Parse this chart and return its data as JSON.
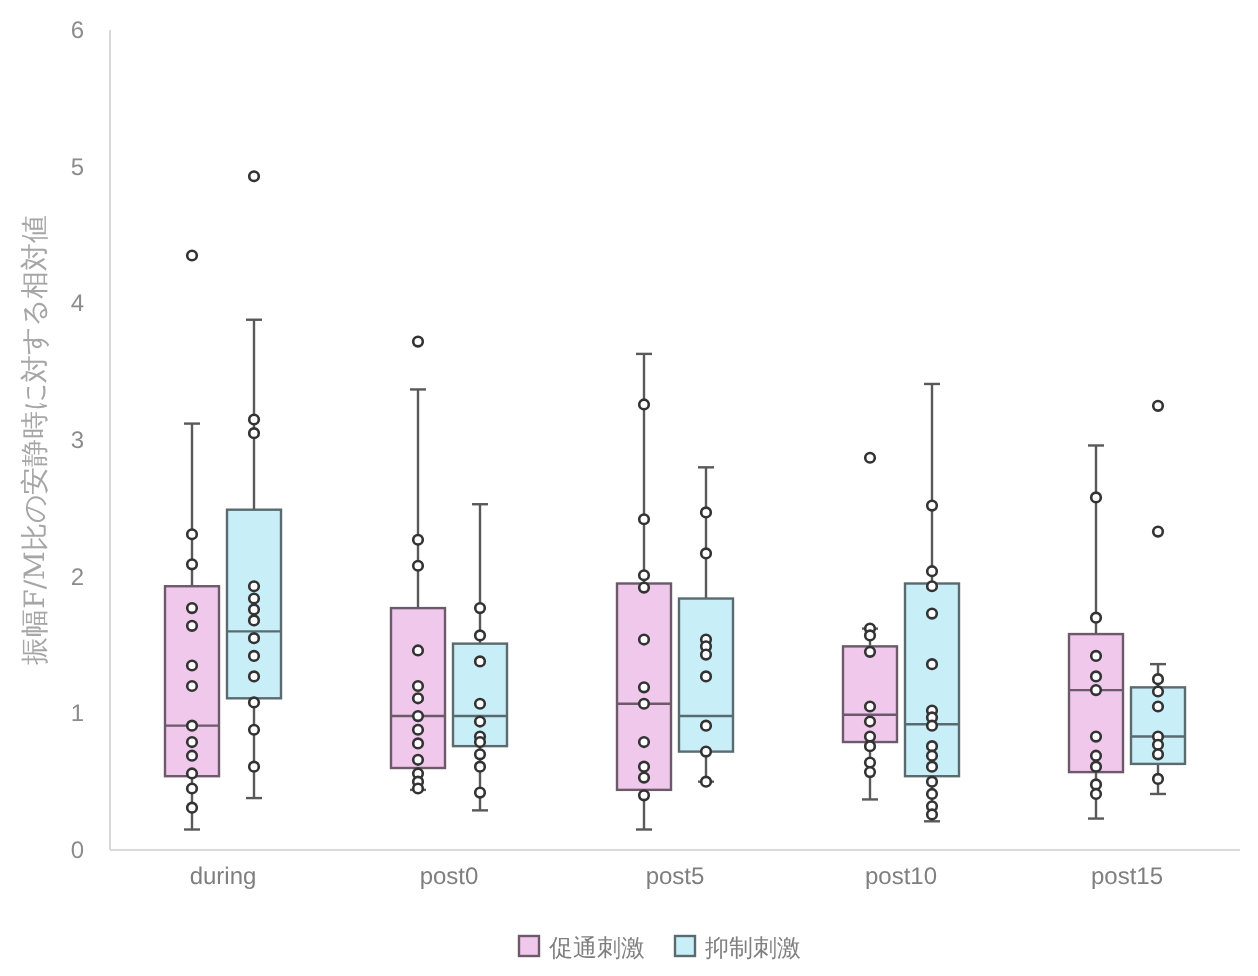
{
  "chart_data": {
    "type": "box",
    "ylabel": "振幅F/M比の安静時に対する相対値",
    "categories": [
      "during",
      "post0",
      "post5",
      "post10",
      "post15"
    ],
    "ylim": [
      0,
      6
    ],
    "yticks": [
      0,
      1,
      2,
      3,
      4,
      5,
      6
    ],
    "legend": "bottom",
    "series": [
      {
        "name": "促通刺激",
        "color": "#f0c8ec",
        "boxes": [
          {
            "low": 0.15,
            "q1": 0.54,
            "median": 0.91,
            "q3": 1.93,
            "high": 3.12,
            "outliers": [
              4.35
            ]
          },
          {
            "low": 0.44,
            "q1": 0.6,
            "median": 0.98,
            "q3": 1.77,
            "high": 3.37,
            "outliers": [
              3.72
            ]
          },
          {
            "low": 0.15,
            "q1": 0.44,
            "median": 1.07,
            "q3": 1.95,
            "high": 3.63
          },
          {
            "low": 0.37,
            "q1": 0.79,
            "median": 0.99,
            "q3": 1.49,
            "high": 1.62,
            "outliers": [
              2.87
            ]
          },
          {
            "low": 0.23,
            "q1": 0.57,
            "median": 1.17,
            "q3": 1.58,
            "high": 2.96
          }
        ]
      },
      {
        "name": "抑制刺激",
        "color": "#c8eef8",
        "boxes": [
          {
            "low": 0.38,
            "q1": 1.11,
            "median": 1.6,
            "q3": 2.49,
            "high": 3.88,
            "outliers": [
              4.93
            ]
          },
          {
            "low": 0.29,
            "q1": 0.76,
            "median": 0.98,
            "q3": 1.51,
            "high": 2.53
          },
          {
            "low": 0.5,
            "q1": 0.72,
            "median": 0.98,
            "q3": 1.84,
            "high": 2.8
          },
          {
            "low": 0.21,
            "q1": 0.54,
            "median": 0.92,
            "q3": 1.95,
            "high": 3.41
          },
          {
            "low": 0.41,
            "q1": 0.63,
            "median": 0.83,
            "q3": 1.19,
            "high": 1.36,
            "outliers": [
              3.25,
              2.33
            ]
          }
        ]
      },
      {
        "type": "scatter",
        "color": "#333333",
        "x": [
          "during",
          "during",
          "during",
          "during",
          "during",
          "during",
          "during",
          "during",
          "during",
          "during",
          "during",
          "during",
          "post0",
          "post0",
          "post0",
          "post0",
          "post0",
          "post0",
          "post0",
          "post0",
          "post0",
          "post0",
          "post0",
          "post0",
          "post5",
          "post5",
          "post5",
          "post5",
          "post5",
          "post5",
          "post5",
          "post5",
          "post5",
          "post5",
          "post5",
          "post5",
          "post10",
          "post10",
          "post10",
          "post10",
          "post10",
          "post10",
          "post10",
          "post10",
          "post10",
          "post15",
          "post15",
          "post15",
          "post15",
          "post15",
          "post15",
          "post15",
          "post15",
          "post15",
          "post15"
        ],
        "values": [
          2.31,
          2.09,
          1.77,
          1.64,
          1.35,
          1.2,
          0.91,
          0.79,
          0.69,
          0.56,
          0.45,
          0.31,
          2.27,
          2.08,
          1.46,
          1.2,
          1.11,
          0.98,
          0.88,
          0.78,
          0.66,
          0.56,
          0.5,
          0.45,
          3.26,
          2.42,
          2.01,
          null,
          1.92,
          1.54,
          1.19,
          1.07,
          0.79,
          0.61,
          0.53,
          0.4,
          1.62,
          1.57,
          1.45,
          1.05,
          0.94,
          0.83,
          0.76,
          0.64,
          0.57,
          2.58,
          1.7,
          1.42,
          1.27,
          1.17,
          0.83,
          0.69,
          0.61,
          0.48,
          0.41
        ]
      },
      {
        "type": "scatter",
        "color": "#333333",
        "x": [
          "during",
          "during",
          "during",
          "during",
          "during",
          "during",
          "during",
          "during",
          "during",
          "during",
          "during",
          "during",
          "post0",
          "post0",
          "post0",
          "post0",
          "post0",
          "post0",
          "post0",
          "post0",
          "post0",
          "post0",
          "post5",
          "post5",
          "post5",
          "post5",
          "post5",
          "post5",
          "post5",
          "post5",
          "post5",
          "post10",
          "post10",
          "post10",
          "post10",
          "post10",
          "post10",
          "post10",
          "post10",
          "post10",
          "post10",
          "post10",
          "post10",
          "post10",
          "post10",
          "post10",
          "post15",
          "post15",
          "post15",
          "post15",
          "post15",
          "post15",
          "post15",
          "post15"
        ],
        "values": [
          3.15,
          3.05,
          1.93,
          1.84,
          1.76,
          1.68,
          1.55,
          1.42,
          1.27,
          1.08,
          0.88,
          0.61,
          1.77,
          1.57,
          1.38,
          1.07,
          0.94,
          0.83,
          0.79,
          0.7,
          0.61,
          0.42,
          2.47,
          2.17,
          1.54,
          1.49,
          1.43,
          1.27,
          0.91,
          0.72,
          0.5,
          2.52,
          2.04,
          1.93,
          1.73,
          1.36,
          1.02,
          0.97,
          0.91,
          0.76,
          0.69,
          0.61,
          0.5,
          0.41,
          0.32,
          0.26,
          1.25,
          1.16,
          null,
          1.05,
          0.83,
          0.77,
          0.7,
          0.52
        ]
      }
    ]
  }
}
